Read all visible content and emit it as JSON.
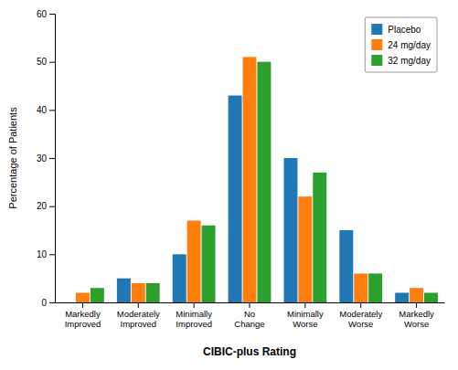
{
  "chart_data": {
    "type": "bar",
    "categories": [
      "Markedly\nImproved",
      "Moderately\nImproved",
      "Minimally\nImproved",
      "No\nChange",
      "Minimally\nWorse",
      "Moderately\nWorse",
      "Markedly\nWorse"
    ],
    "series": [
      {
        "name": "Placebo",
        "values": [
          0,
          5,
          10,
          43,
          30,
          15,
          2
        ]
      },
      {
        "name": "24 mg/day",
        "values": [
          2,
          4,
          17,
          51,
          22,
          6,
          3
        ]
      },
      {
        "name": "32 mg/day",
        "values": [
          3,
          4,
          16,
          50,
          27,
          6,
          2
        ]
      }
    ],
    "xlabel": "CIBIC-plus Rating",
    "ylabel": "Percentage of Patients",
    "ylim": [
      0,
      60
    ],
    "yticks": [
      0,
      10,
      20,
      30,
      40,
      50,
      60
    ],
    "grid": false,
    "legend": "upper right"
  }
}
